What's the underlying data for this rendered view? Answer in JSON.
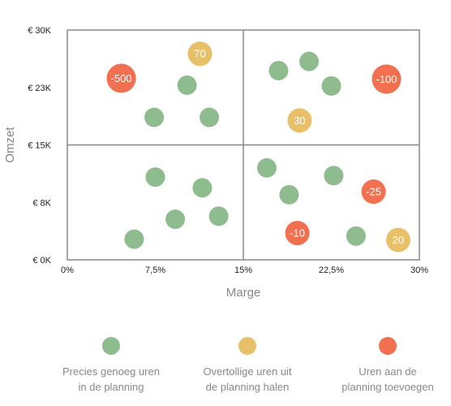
{
  "chart_data": {
    "type": "scatter",
    "title": "",
    "xlabel": "Marge",
    "ylabel": "Omzet",
    "xlim": [
      0,
      30
    ],
    "ylim": [
      0,
      30000
    ],
    "x_ticks": [
      {
        "value": 0,
        "label": "0%"
      },
      {
        "value": 7.5,
        "label": "7,5%"
      },
      {
        "value": 15,
        "label": "15%"
      },
      {
        "value": 22.5,
        "label": "22,5%"
      },
      {
        "value": 30,
        "label": "30%"
      }
    ],
    "y_ticks": [
      {
        "value": 0,
        "label": "€ 0K"
      },
      {
        "value": 7500,
        "label": "€ 8K"
      },
      {
        "value": 15000,
        "label": "€ 15K"
      },
      {
        "value": 22500,
        "label": "€ 23K"
      },
      {
        "value": 30000,
        "label": "€ 30K"
      }
    ],
    "quadrant_lines": {
      "x": 15,
      "y": 15000
    },
    "grid": false,
    "legend_position": "bottom",
    "series": [
      {
        "name": "Precies genoeg uren in de planning",
        "color": "#8fbc8f",
        "points": [
          {
            "x": 7.4,
            "y": 18600,
            "label": ""
          },
          {
            "x": 10.2,
            "y": 22800,
            "label": ""
          },
          {
            "x": 12.1,
            "y": 18600,
            "label": ""
          },
          {
            "x": 18.0,
            "y": 24700,
            "label": ""
          },
          {
            "x": 20.6,
            "y": 25900,
            "label": ""
          },
          {
            "x": 22.5,
            "y": 22700,
            "label": ""
          },
          {
            "x": 7.5,
            "y": 10800,
            "label": ""
          },
          {
            "x": 11.5,
            "y": 9400,
            "label": ""
          },
          {
            "x": 9.2,
            "y": 5300,
            "label": ""
          },
          {
            "x": 12.9,
            "y": 5700,
            "label": ""
          },
          {
            "x": 5.7,
            "y": 2700,
            "label": ""
          },
          {
            "x": 17.0,
            "y": 12000,
            "label": ""
          },
          {
            "x": 18.9,
            "y": 8500,
            "label": ""
          },
          {
            "x": 22.7,
            "y": 11000,
            "label": ""
          },
          {
            "x": 24.6,
            "y": 3100,
            "label": ""
          }
        ]
      },
      {
        "name": "Overtollige uren uit de planning halen",
        "color": "#e8c06a",
        "points": [
          {
            "x": 11.3,
            "y": 26900,
            "label": "70"
          },
          {
            "x": 19.8,
            "y": 18200,
            "label": "30"
          },
          {
            "x": 28.2,
            "y": 2600,
            "label": "20"
          }
        ]
      },
      {
        "name": "Uren aan de planning toevoegen",
        "color": "#f07050",
        "points": [
          {
            "x": 4.6,
            "y": 23700,
            "label": "-500"
          },
          {
            "x": 27.2,
            "y": 23600,
            "label": "-100"
          },
          {
            "x": 26.1,
            "y": 8900,
            "label": "-25"
          },
          {
            "x": 19.6,
            "y": 3500,
            "label": "-10"
          }
        ]
      }
    ],
    "legend": [
      {
        "lines": [
          "Precies genoeg uren",
          "in de planning"
        ],
        "color": "#8fbc8f"
      },
      {
        "lines": [
          "Overtollige uren uit",
          "de planning halen"
        ],
        "color": "#e8c06a"
      },
      {
        "lines": [
          "Uren aan de",
          "planning toevoegen"
        ],
        "color": "#f07050"
      }
    ]
  }
}
